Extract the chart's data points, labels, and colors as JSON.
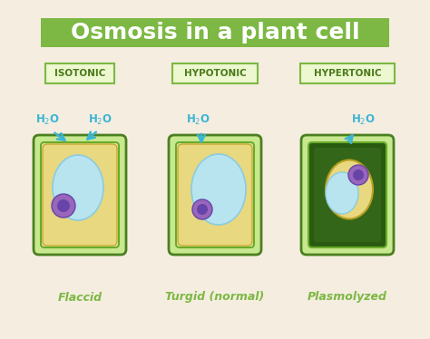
{
  "title": "Osmosis in a plant cell",
  "title_fontsize": 18,
  "title_bg": "#7cb843",
  "title_color": "white",
  "bg_color": "#f5ede0",
  "labels": [
    "ISOTONIC",
    "HYPOTONIC",
    "HYPERTONIC"
  ],
  "label_bg": "#edf7d0",
  "label_border": "#7cb843",
  "label_color": "#4a7a1a",
  "label_fontsize": 7.5,
  "sublabel_actual": [
    "Flaccid",
    "Turgid (normal)",
    "Plasmolyzed"
  ],
  "sublabel_color": "#7cb843",
  "sublabel_fontsize": 9,
  "h2o_color": "#3ab5d5",
  "cell_outer_dark": "#4a8020",
  "cell_outer_mid": "#6aab2a",
  "cell_outer_light": "#c8e890",
  "cell_wall_light": "#e0f0b0",
  "cell_vacuole_light": "#b8e4f0",
  "cell_vacuole_dark": "#8acce0",
  "cell_cytoplasm": "#e8d880",
  "cell_nucleus": "#9966bb",
  "cell_nucleus_dark": "#6644aa",
  "plasmolyzed_outer_dark": "#2a5a10",
  "plasmolyzed_inner_dark": "#336618",
  "plasmolyzed_mid": "#4a8822"
}
